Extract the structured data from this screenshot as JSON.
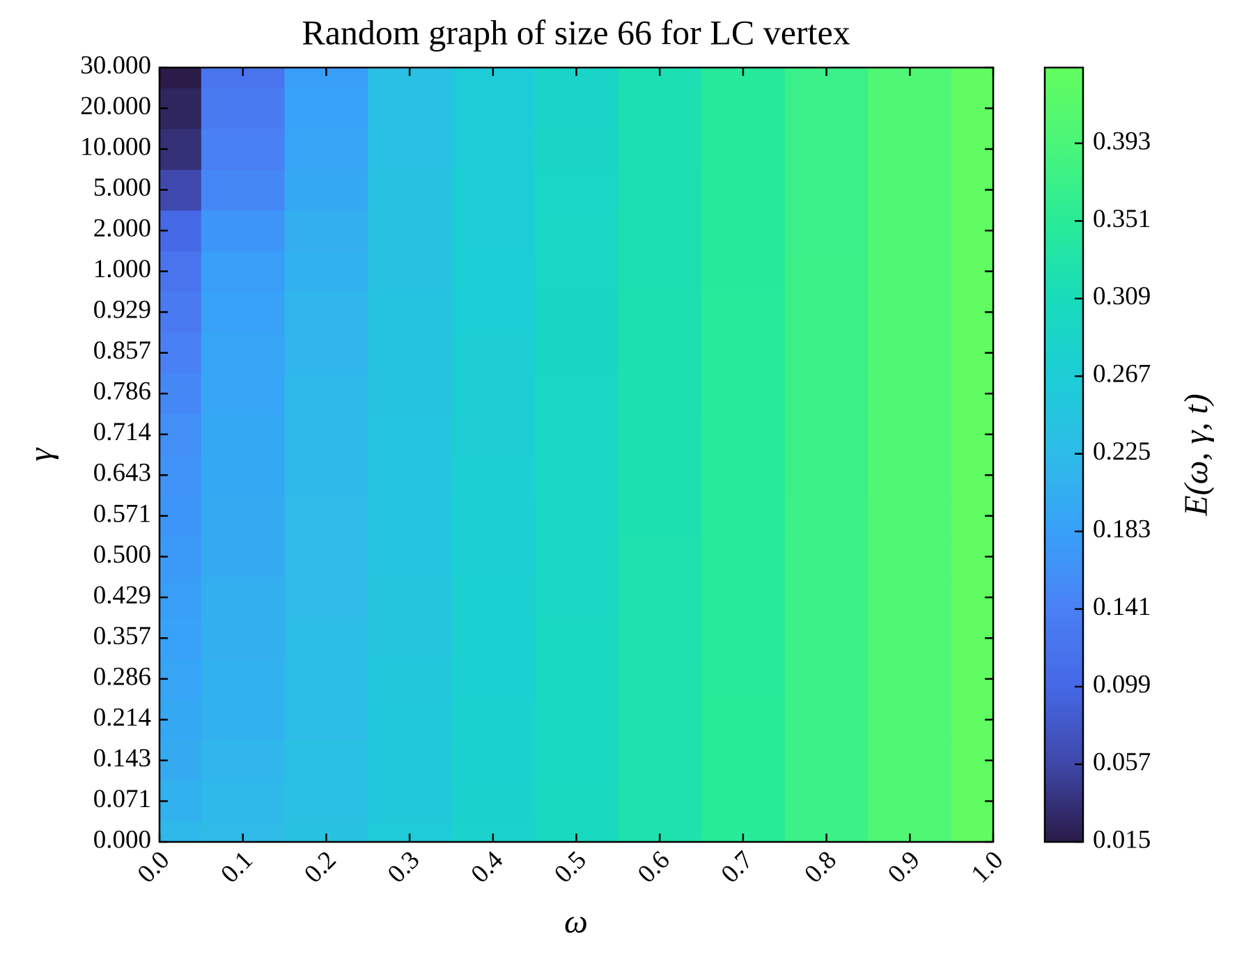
{
  "chart_data": {
    "type": "heatmap",
    "title": "Random graph of size 66 for LC vertex",
    "x_label": "ω",
    "y_label": "γ",
    "colorbar_label": "E(ω, γ, t)",
    "x": [
      0,
      0.1,
      0.2,
      0.3,
      0.4,
      0.5,
      0.6,
      0.7,
      0.8,
      0.9,
      1
    ],
    "y_categories": [
      "0.000",
      "0.071",
      "0.143",
      "0.214",
      "0.286",
      "0.357",
      "0.429",
      "0.500",
      "0.571",
      "0.643",
      "0.714",
      "0.786",
      "0.857",
      "0.929",
      "1.000",
      "2.000",
      "5.000",
      "10.000",
      "20.000",
      "30.000"
    ],
    "z": [
      [
        0.22,
        0.225,
        0.24,
        0.26,
        0.28,
        0.3,
        0.325,
        0.35,
        0.375,
        0.4,
        0.43
      ],
      [
        0.21,
        0.22,
        0.235,
        0.258,
        0.279,
        0.3,
        0.325,
        0.35,
        0.375,
        0.4,
        0.43
      ],
      [
        0.2,
        0.215,
        0.235,
        0.256,
        0.278,
        0.299,
        0.324,
        0.35,
        0.375,
        0.4,
        0.43
      ],
      [
        0.195,
        0.21,
        0.23,
        0.254,
        0.277,
        0.299,
        0.324,
        0.35,
        0.375,
        0.4,
        0.43
      ],
      [
        0.19,
        0.21,
        0.23,
        0.252,
        0.276,
        0.298,
        0.324,
        0.349,
        0.375,
        0.4,
        0.43
      ],
      [
        0.185,
        0.205,
        0.23,
        0.25,
        0.275,
        0.298,
        0.323,
        0.349,
        0.375,
        0.4,
        0.43
      ],
      [
        0.18,
        0.205,
        0.225,
        0.249,
        0.274,
        0.297,
        0.323,
        0.349,
        0.375,
        0.4,
        0.43
      ],
      [
        0.175,
        0.2,
        0.225,
        0.248,
        0.273,
        0.297,
        0.323,
        0.349,
        0.375,
        0.4,
        0.43
      ],
      [
        0.17,
        0.2,
        0.225,
        0.247,
        0.272,
        0.296,
        0.322,
        0.348,
        0.375,
        0.4,
        0.43
      ],
      [
        0.165,
        0.195,
        0.22,
        0.246,
        0.271,
        0.296,
        0.322,
        0.348,
        0.374,
        0.4,
        0.43
      ],
      [
        0.16,
        0.195,
        0.22,
        0.245,
        0.27,
        0.295,
        0.322,
        0.348,
        0.374,
        0.4,
        0.43
      ],
      [
        0.15,
        0.19,
        0.22,
        0.244,
        0.27,
        0.295,
        0.321,
        0.347,
        0.374,
        0.4,
        0.43
      ],
      [
        0.14,
        0.19,
        0.215,
        0.243,
        0.269,
        0.294,
        0.321,
        0.347,
        0.374,
        0.4,
        0.43
      ],
      [
        0.13,
        0.185,
        0.215,
        0.242,
        0.268,
        0.294,
        0.321,
        0.347,
        0.374,
        0.4,
        0.43
      ],
      [
        0.12,
        0.18,
        0.21,
        0.241,
        0.268,
        0.293,
        0.32,
        0.346,
        0.374,
        0.4,
        0.43
      ],
      [
        0.1,
        0.17,
        0.205,
        0.24,
        0.267,
        0.293,
        0.32,
        0.346,
        0.373,
        0.4,
        0.43
      ],
      [
        0.06,
        0.15,
        0.195,
        0.238,
        0.266,
        0.292,
        0.32,
        0.346,
        0.373,
        0.4,
        0.43
      ],
      [
        0.035,
        0.14,
        0.19,
        0.237,
        0.265,
        0.291,
        0.319,
        0.345,
        0.373,
        0.4,
        0.43
      ],
      [
        0.025,
        0.13,
        0.185,
        0.236,
        0.265,
        0.29,
        0.319,
        0.345,
        0.373,
        0.4,
        0.43
      ],
      [
        0.015,
        0.12,
        0.18,
        0.235,
        0.264,
        0.29,
        0.318,
        0.345,
        0.372,
        0.4,
        0.43
      ]
    ],
    "xlim": [
      0,
      1
    ],
    "xticks": [
      {
        "value": 0,
        "label": "0.0"
      },
      0.1,
      0.2,
      0.3,
      0.4,
      0.5,
      0.6,
      0.7,
      0.8,
      0.9,
      {
        "value": 1,
        "label": "1.0"
      }
    ],
    "zlim": [
      0.015,
      0.434
    ],
    "zticks": [
      0.015,
      0.057,
      0.099,
      0.141,
      0.183,
      0.225,
      0.267,
      0.309,
      0.351,
      0.393
    ],
    "colormap": [
      "#2a1b48",
      "#3f47a8",
      "#4568e6",
      "#4a80f5",
      "#38a0f8",
      "#2ebbe8",
      "#1ccdd6",
      "#18dbbb",
      "#28eb98",
      "#4af57a",
      "#62fd5e"
    ]
  }
}
